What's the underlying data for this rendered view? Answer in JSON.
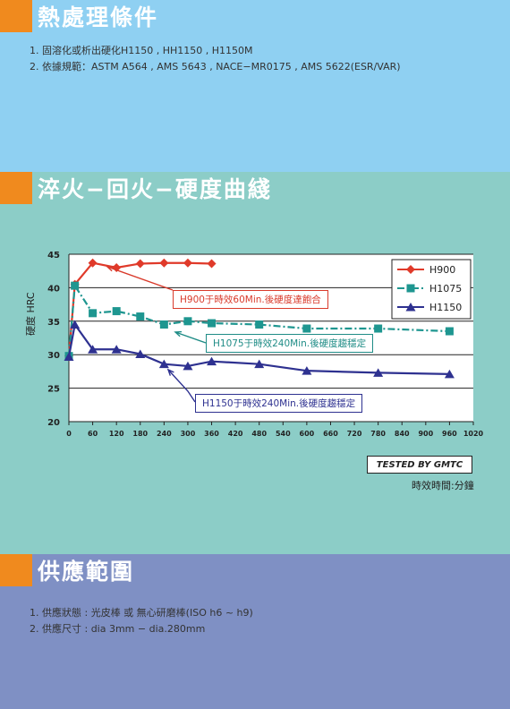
{
  "section1": {
    "title": "熱處理條件",
    "items": [
      "1. 固溶化或析出硬化H1150 , HH1150 , H1150M",
      "2. 依據規範：ASTM A564 , AMS 5643 , NACE−MR0175 , AMS 5622(ESR/VAR)"
    ]
  },
  "section2": {
    "title": "淬火−回火−硬度曲綫"
  },
  "section3": {
    "title": "供應範圍",
    "items": [
      "1. 供應狀態 : 光皮棒 或 無心研磨棒(ISO h6 ~ h9)",
      "2. 供應尺寸 : dia 3mm − dia.280mm"
    ]
  },
  "chart_data": {
    "type": "line",
    "xlabel": "時效時間:分鐘",
    "ylabel": "硬度 HRC",
    "xlim": [
      0,
      1020
    ],
    "ylim": [
      20,
      45
    ],
    "x_ticks": [
      0,
      60,
      120,
      180,
      240,
      300,
      360,
      420,
      480,
      540,
      600,
      660,
      720,
      780,
      840,
      900,
      960,
      1020
    ],
    "y_ticks": [
      20,
      25,
      30,
      35,
      40,
      45
    ],
    "grid": "horizontal",
    "legend_position": "top-right",
    "series": [
      {
        "name": "H900",
        "color": "#e03a2a",
        "marker": "diamond",
        "dash": "",
        "points": [
          [
            0,
            29.8
          ],
          [
            15,
            40.5
          ],
          [
            60,
            43.7
          ],
          [
            120,
            43.0
          ],
          [
            180,
            43.6
          ],
          [
            240,
            43.7
          ],
          [
            300,
            43.7
          ],
          [
            360,
            43.6
          ]
        ]
      },
      {
        "name": "H1075",
        "color": "#1e9690",
        "marker": "square",
        "dash": "8 3 2 3",
        "points": [
          [
            0,
            29.8
          ],
          [
            15,
            40.3
          ],
          [
            60,
            36.2
          ],
          [
            120,
            36.5
          ],
          [
            180,
            35.7
          ],
          [
            240,
            34.5
          ],
          [
            300,
            35.0
          ],
          [
            360,
            34.7
          ],
          [
            480,
            34.5
          ],
          [
            600,
            33.9
          ],
          [
            780,
            33.9
          ],
          [
            960,
            33.5
          ]
        ]
      },
      {
        "name": "H1150",
        "color": "#2e3190",
        "marker": "triangle",
        "dash": "",
        "points": [
          [
            0,
            29.7
          ],
          [
            15,
            34.5
          ],
          [
            60,
            30.8
          ],
          [
            120,
            30.8
          ],
          [
            180,
            30.1
          ],
          [
            240,
            28.6
          ],
          [
            300,
            28.3
          ],
          [
            360,
            29.0
          ],
          [
            480,
            28.6
          ],
          [
            600,
            27.6
          ],
          [
            780,
            27.3
          ],
          [
            960,
            27.1
          ]
        ]
      }
    ],
    "annotations": [
      "H900于時效60Min.後硬度達飽合",
      "H1075于時效240Min.後硬度趨穩定",
      "H1150于時效240Min.後硬度趨穩定"
    ],
    "credit": "TESTED BY GMTC"
  }
}
